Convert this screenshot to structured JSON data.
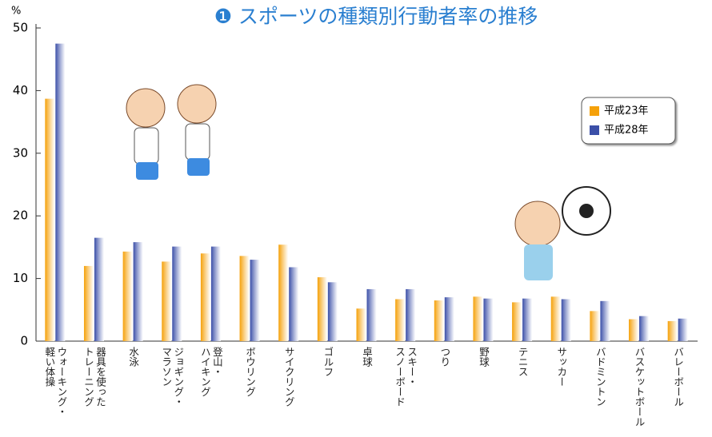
{
  "chart_data": {
    "type": "bar",
    "title": "❶ スポーツの種類別行動者率の推移",
    "y_label": "%",
    "categories": [
      "ウォーキング・\n軽い体操",
      "器具を使った\nトレーニング",
      "水泳",
      "ジョギング・\nマラソン",
      "登山・\nハイキング",
      "ボウリング",
      "サイクリング",
      "ゴルフ",
      "卓球",
      "スキー・\nスノーボード",
      "つり",
      "野球",
      "テニス",
      "サッカー",
      "バドミントン",
      "バスケットボール",
      "バレーボール"
    ],
    "series": [
      {
        "name": "平成23年",
        "color": "#f5a10a",
        "values": [
          38.7,
          12.0,
          14.3,
          12.7,
          14.0,
          13.6,
          15.4,
          10.2,
          5.2,
          6.7,
          6.5,
          7.1,
          6.2,
          7.1,
          4.8,
          3.5,
          3.2
        ]
      },
      {
        "name": "平成28年",
        "color": "#3b4fa8",
        "values": [
          47.5,
          16.5,
          15.8,
          15.1,
          15.1,
          13.0,
          11.8,
          9.4,
          8.3,
          8.3,
          7.0,
          6.8,
          6.8,
          6.7,
          6.4,
          4.0,
          3.6
        ]
      }
    ],
    "ylim": [
      0,
      50
    ],
    "yticks": [
      0,
      10,
      20,
      30,
      40,
      50
    ]
  }
}
